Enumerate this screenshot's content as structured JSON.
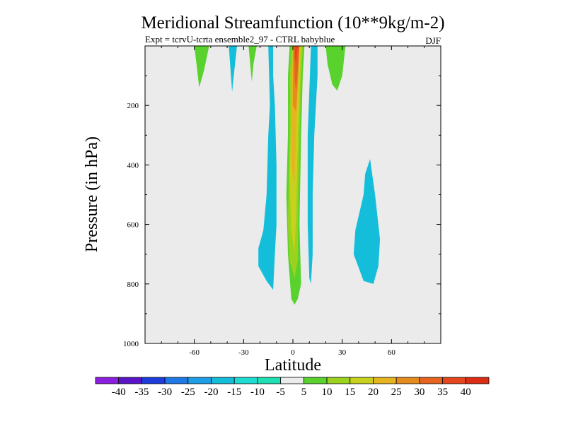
{
  "chart_data": {
    "type": "contour",
    "title": "Meridional Streamfunction (10**9kg/m-2)",
    "subtitle": "Expt = tcrvU-tcrta ensemble2_97 - CTRL babyblue",
    "season": "DJF",
    "xlabel": "Latitude",
    "ylabel": "Pressure (in hPa)",
    "xlim": [
      -90,
      90
    ],
    "ylim": [
      1000,
      0
    ],
    "x_ticks": [
      -60,
      -30,
      0,
      30,
      60
    ],
    "x_tick_labels": [
      "-60",
      "-30",
      "0",
      "30",
      "60"
    ],
    "y_ticks": [
      200,
      400,
      600,
      800,
      1000
    ],
    "y_tick_labels": [
      "200",
      "400",
      "600",
      "800",
      "1000"
    ],
    "grid": false,
    "colorbar": {
      "orientation": "horizontal",
      "levels": [
        -40,
        -35,
        -30,
        -25,
        -20,
        -15,
        -10,
        -5,
        5,
        10,
        15,
        20,
        25,
        30,
        35,
        40
      ],
      "level_labels": [
        "-40",
        "-35",
        "-30",
        "-25",
        "-20",
        "-15",
        "-10",
        "-5",
        "5",
        "10",
        "15",
        "20",
        "25",
        "30",
        "35",
        "40"
      ],
      "colors": [
        "#8c1ee0",
        "#5a14c8",
        "#1e3cdc",
        "#1e78e6",
        "#1e9ee6",
        "#14beda",
        "#1edcd2",
        "#1ee0b4",
        "#ebebeb",
        "#5ad22d",
        "#9bd21e",
        "#c8d21e",
        "#e6b41e",
        "#e68c1e",
        "#e6641e",
        "#e6461e",
        "#dc2d14"
      ]
    },
    "background_color": "#ebebeb",
    "regions": [
      {
        "name": "stratosphere-wedge-sh-far",
        "color_level": 10,
        "points": [
          [
            -60,
            0
          ],
          [
            -51,
            0
          ],
          [
            -54,
            80
          ],
          [
            -57,
            140
          ]
        ]
      },
      {
        "name": "stratosphere-wedge-sh-mid",
        "color_level": -10,
        "points": [
          [
            -39,
            0
          ],
          [
            -34,
            0
          ],
          [
            -36,
            100
          ],
          [
            -37,
            155
          ]
        ]
      },
      {
        "name": "stratosphere-wedge-sh-near",
        "color_level": 10,
        "points": [
          [
            -27,
            0
          ],
          [
            -22,
            0
          ],
          [
            -24,
            60
          ],
          [
            -25,
            120
          ]
        ]
      },
      {
        "name": "sh-negative-cell",
        "color_level": -10,
        "points": [
          [
            -15,
            0
          ],
          [
            -12,
            0
          ],
          [
            -12,
            100
          ],
          [
            -11,
            200
          ],
          [
            -10,
            400
          ],
          [
            -10,
            600
          ],
          [
            -11,
            700
          ],
          [
            -12,
            820
          ],
          [
            -16,
            790
          ],
          [
            -21,
            740
          ],
          [
            -21,
            680
          ],
          [
            -18,
            620
          ],
          [
            -16,
            500
          ],
          [
            -15,
            300
          ],
          [
            -14,
            200
          ]
        ]
      },
      {
        "name": "nh-negative-filament",
        "color_level": -10,
        "points": [
          [
            11,
            0
          ],
          [
            15,
            0
          ],
          [
            15,
            100
          ],
          [
            13,
            300
          ],
          [
            12,
            500
          ],
          [
            12,
            700
          ],
          [
            11,
            800
          ],
          [
            10,
            780
          ],
          [
            9,
            600
          ],
          [
            9,
            300
          ],
          [
            10,
            150
          ]
        ]
      },
      {
        "name": "nh-stratosphere-wedge",
        "color_level": 10,
        "points": [
          [
            20,
            0
          ],
          [
            32,
            0
          ],
          [
            30,
            100
          ],
          [
            27,
            150
          ],
          [
            24,
            130
          ],
          [
            21,
            60
          ]
        ]
      },
      {
        "name": "nh-midlat-negative-cell",
        "color_level": -10,
        "points": [
          [
            47,
            380
          ],
          [
            50,
            500
          ],
          [
            53,
            650
          ],
          [
            52,
            740
          ],
          [
            49,
            800
          ],
          [
            43,
            790
          ],
          [
            37,
            700
          ],
          [
            38,
            620
          ],
          [
            43,
            500
          ],
          [
            44,
            430
          ]
        ]
      },
      {
        "name": "main-cell-contour-5",
        "color_level": 5,
        "points": [
          [
            -3,
            0
          ],
          [
            8,
            0
          ],
          [
            7,
            100
          ],
          [
            6,
            300
          ],
          [
            5,
            600
          ],
          [
            6,
            800
          ],
          [
            5,
            850
          ],
          [
            4,
            930
          ],
          [
            2,
            945
          ],
          [
            -2,
            920
          ],
          [
            -4,
            900
          ],
          [
            -5,
            700
          ],
          [
            -5,
            500
          ],
          [
            -4,
            300
          ],
          [
            -4,
            100
          ]
        ]
      },
      {
        "name": "main-cell-contour-10",
        "color_level": 10,
        "points": [
          [
            -2,
            0
          ],
          [
            7,
            0
          ],
          [
            6,
            100
          ],
          [
            5,
            300
          ],
          [
            4,
            600
          ],
          [
            5,
            800
          ],
          [
            3,
            850
          ],
          [
            1,
            870
          ],
          [
            -1,
            850
          ],
          [
            -3,
            700
          ],
          [
            -4,
            500
          ],
          [
            -3,
            300
          ],
          [
            -3,
            100
          ]
        ]
      },
      {
        "name": "main-cell-contour-15",
        "color_level": 15,
        "points": [
          [
            -1,
            0
          ],
          [
            6,
            0
          ],
          [
            5,
            120
          ],
          [
            4,
            300
          ],
          [
            3,
            600
          ],
          [
            3,
            720
          ],
          [
            1,
            780
          ],
          [
            -2,
            720
          ],
          [
            -3,
            600
          ],
          [
            -2,
            300
          ],
          [
            -2,
            120
          ]
        ]
      },
      {
        "name": "main-cell-contour-20",
        "color_level": 20,
        "points": [
          [
            0,
            0
          ],
          [
            5,
            0
          ],
          [
            4,
            150
          ],
          [
            3,
            300
          ],
          [
            2,
            560
          ],
          [
            1,
            690
          ],
          [
            -1,
            620
          ],
          [
            -2,
            440
          ],
          [
            -1,
            220
          ]
        ]
      },
      {
        "name": "main-cell-contour-25",
        "color_level": 25,
        "points": [
          [
            0,
            0
          ],
          [
            4,
            0
          ],
          [
            3,
            150
          ],
          [
            2,
            280
          ],
          [
            1,
            470
          ],
          [
            -1,
            400
          ],
          [
            -1,
            200
          ]
        ]
      },
      {
        "name": "main-cell-contour-30",
        "color_level": 30,
        "points": [
          [
            0,
            0
          ],
          [
            4,
            0
          ],
          [
            3,
            120
          ],
          [
            2,
            220
          ],
          [
            0,
            200
          ],
          [
            0,
            90
          ]
        ]
      },
      {
        "name": "main-cell-contour-35",
        "color_level": 35,
        "points": [
          [
            1,
            0
          ],
          [
            4,
            0
          ],
          [
            3,
            80
          ],
          [
            2,
            150
          ],
          [
            1,
            110
          ]
        ]
      },
      {
        "name": "main-cell-contour-40",
        "color_level": 40,
        "points": [
          [
            1,
            0
          ],
          [
            3,
            0
          ],
          [
            2,
            60
          ],
          [
            1,
            40
          ]
        ]
      }
    ]
  }
}
